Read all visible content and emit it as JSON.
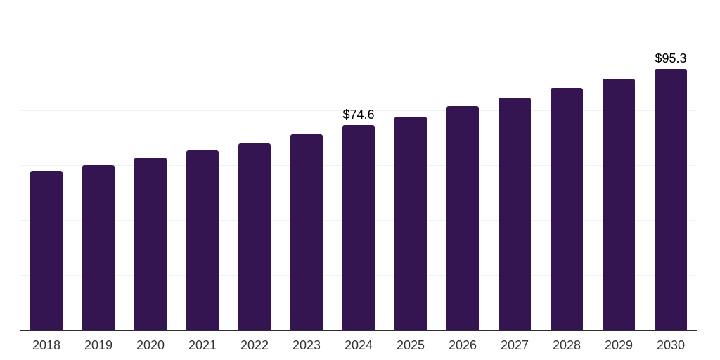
{
  "chart_data": {
    "type": "bar",
    "title": "",
    "xlabel": "",
    "ylabel": "",
    "categories": [
      "2018",
      "2019",
      "2020",
      "2021",
      "2022",
      "2023",
      "2024",
      "2025",
      "2026",
      "2027",
      "2028",
      "2029",
      "2030"
    ],
    "values": [
      58.1,
      60.2,
      63.0,
      65.5,
      68.1,
      71.3,
      74.6,
      77.9,
      81.5,
      84.8,
      88.4,
      91.7,
      95.3
    ],
    "data_labels": {
      "2024": "$74.6",
      "2030": "$95.3"
    },
    "ylim": [
      0,
      120
    ],
    "grid_step": 20,
    "grid": true,
    "legend": "none",
    "y_tick_labels_visible": false,
    "colors": {
      "bar": "#341451",
      "grid": "#f1f1f1",
      "axis": "#2e2e2e",
      "tick_label": "#333333",
      "data_label": "#000000",
      "background": "#ffffff"
    }
  }
}
